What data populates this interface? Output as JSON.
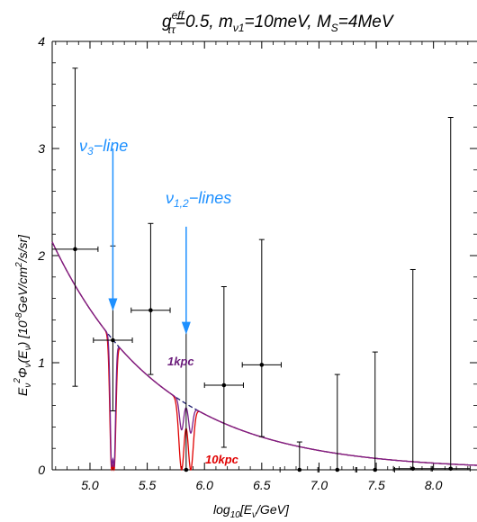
{
  "chart_data": {
    "type": "line",
    "title": {
      "g": "g",
      "eff": "eff",
      "tt": "ττ",
      "rest1": "=0.5, m",
      "nu1": "ν1",
      "rest2": "=10meV, M",
      "S": "S",
      "rest3": "=4MeV"
    },
    "xlabel": {
      "pre": "log",
      "sub": "10",
      "post": "[E",
      "nu": "ν",
      "end": "/GeV]"
    },
    "ylabel": {
      "a": "E",
      "nu": "ν",
      "b": "2",
      "c": "Φ",
      "d": "(E",
      "e": ") [10",
      "f": "-8",
      "g": "GeV/cm",
      "h": "2",
      "i": "/s/sr]"
    },
    "xlim": [
      4.67,
      8.38
    ],
    "ylim": [
      0,
      4
    ],
    "x_ticks": [
      "5.0",
      "5.5",
      "6.0",
      "6.5",
      "7.0",
      "7.5",
      "8.0"
    ],
    "y_ticks": [
      "0",
      "1",
      "2",
      "3",
      "4"
    ],
    "colors": {
      "no_interaction": "#1a1a6e",
      "kpc1": "#7b1f8a",
      "kpc10": "#e00000",
      "data": "#000000",
      "annotation": "#1e90ff"
    },
    "series": [
      {
        "name": "1kpc",
        "dips": [
          {
            "x": 5.19,
            "depth": 0.97,
            "width": 0.018
          },
          {
            "x": 5.21,
            "depth": 0.97,
            "width": 0.018
          },
          {
            "x": 5.8,
            "depth": 0.42,
            "width": 0.025
          },
          {
            "x": 5.88,
            "depth": 0.42,
            "width": 0.025
          }
        ]
      },
      {
        "name": "10kpc",
        "dips": [
          {
            "x": 5.19,
            "depth": 1.0,
            "width": 0.022
          },
          {
            "x": 5.21,
            "depth": 1.0,
            "width": 0.022
          },
          {
            "x": 5.8,
            "depth": 1.0,
            "width": 0.032
          },
          {
            "x": 5.88,
            "depth": 1.0,
            "width": 0.032
          }
        ]
      }
    ],
    "baseline": {
      "amplitude": 1.5,
      "x0": 5.0,
      "index": -0.46
    },
    "data_points": [
      {
        "x": 4.87,
        "y": 2.06,
        "xerr": 0.2,
        "ylo": 0.78,
        "yhi": 3.75
      },
      {
        "x": 5.2,
        "y": 1.21,
        "xerr": 0.17,
        "ylo": 0.55,
        "yhi": 2.09
      },
      {
        "x": 5.53,
        "y": 1.49,
        "xerr": 0.17,
        "ylo": 0.89,
        "yhi": 2.3
      },
      {
        "x": 5.84,
        "y": 0.0,
        "xerr": 0.0,
        "ylo": 0.0,
        "yhi": 1.37
      },
      {
        "x": 6.17,
        "y": 0.79,
        "xerr": 0.17,
        "ylo": 0.21,
        "yhi": 1.71
      },
      {
        "x": 6.5,
        "y": 0.98,
        "xerr": 0.17,
        "ylo": 0.31,
        "yhi": 2.15
      },
      {
        "x": 6.83,
        "y": 0.0,
        "xerr": 0.17,
        "ylo": 0.0,
        "yhi": 0.26
      },
      {
        "x": 7.16,
        "y": 0.0,
        "xerr": 0.17,
        "ylo": 0.0,
        "yhi": 0.89
      },
      {
        "x": 7.49,
        "y": 0.0,
        "xerr": 0.17,
        "ylo": 0.0,
        "yhi": 1.1
      },
      {
        "x": 7.82,
        "y": 0.01,
        "xerr": 0.17,
        "ylo": 0.0,
        "yhi": 1.87
      },
      {
        "x": 8.15,
        "y": 0.01,
        "xerr": 0.17,
        "ylo": 0.0,
        "yhi": 3.29
      }
    ],
    "annotations": {
      "nu3_line": {
        "label_nu": "ν",
        "label_sub": "3",
        "label_rest": "−line",
        "arrow_x": 5.2,
        "arrow_from": 3.0,
        "arrow_to": 1.5
      },
      "nu12_lines": {
        "label_nu": "ν",
        "label_sub": "1,2",
        "label_rest": "−lines",
        "arrow_x": 5.84,
        "arrow_from": 2.27,
        "arrow_to": 1.28
      },
      "kpc1": {
        "text": "1kpc",
        "x": 6.05,
        "y": 0.99
      },
      "kpc10": {
        "text": "10kpc",
        "x": 6.05,
        "y": 0.12
      }
    }
  }
}
